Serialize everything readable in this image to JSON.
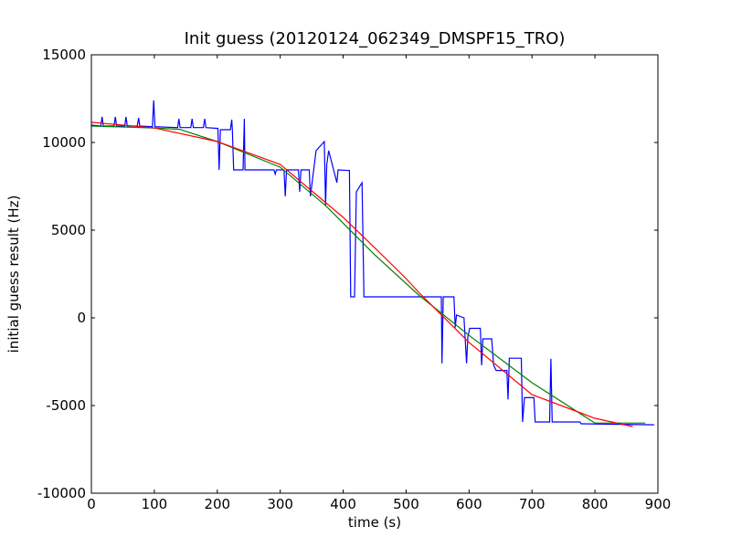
{
  "chart_data": {
    "type": "line",
    "title": "Init guess (20120124_062349_DMSPF15_TRO)",
    "xlabel": "time (s)",
    "ylabel": "initial guess result (Hz)",
    "xlim": [
      0,
      900
    ],
    "ylim": [
      -10000,
      15000
    ],
    "xticks": [
      0,
      100,
      200,
      300,
      400,
      500,
      600,
      700,
      800,
      900
    ],
    "yticks": [
      -10000,
      -5000,
      0,
      5000,
      10000,
      15000
    ],
    "series": [
      {
        "color": "#0000ff",
        "x": [
          0,
          15,
          17,
          19,
          36,
          38,
          40,
          53,
          55,
          57,
          73,
          75,
          77,
          97,
          99,
          101,
          137,
          139,
          141,
          158,
          160,
          162,
          178,
          180,
          182,
          201,
          203,
          205,
          221,
          223,
          224,
          226,
          228,
          241,
          243,
          244,
          246,
          248,
          290,
          292,
          294,
          306,
          308,
          310,
          329,
          331,
          333,
          346,
          348,
          357,
          370,
          372,
          374,
          375,
          377,
          390,
          392,
          410,
          412,
          414,
          418,
          421,
          430,
          433,
          436,
          556,
          557,
          559,
          576,
          578,
          580,
          592,
          596,
          598,
          601,
          618,
          620,
          622,
          636,
          639,
          643,
          660,
          662,
          664,
          683,
          685,
          688,
          703,
          705,
          709,
          728,
          730,
          732,
          776,
          778,
          780,
          894
        ],
        "values": [
          10990,
          10940,
          11460,
          10940,
          10940,
          11460,
          10940,
          10940,
          11460,
          10940,
          10940,
          11400,
          10940,
          10900,
          12400,
          10900,
          10850,
          11350,
          10850,
          10850,
          11350,
          10850,
          10850,
          11350,
          10850,
          10800,
          8440,
          10730,
          10730,
          11300,
          10730,
          8440,
          8440,
          8440,
          11350,
          8440,
          8440,
          8440,
          8440,
          8200,
          8440,
          8440,
          6930,
          8440,
          8440,
          7190,
          8440,
          8440,
          6930,
          9530,
          10050,
          6400,
          8750,
          9000,
          9530,
          7710,
          8440,
          8400,
          1200,
          1200,
          1200,
          7190,
          7710,
          1200,
          1200,
          1200,
          -2600,
          1200,
          1200,
          -550,
          160,
          0,
          -2600,
          -1100,
          -600,
          -600,
          -2700,
          -1200,
          -1200,
          -2700,
          -3000,
          -3000,
          -4650,
          -2300,
          -2300,
          -5940,
          -4550,
          -4550,
          -5940,
          -5940,
          -5940,
          -2340,
          -5940,
          -5940,
          -6040,
          -6040,
          -6100
        ]
      },
      {
        "color": "#008000",
        "x": [
          0,
          100,
          140,
          200,
          300,
          372,
          450,
          520,
          600,
          700,
          800,
          880
        ],
        "values": [
          10940,
          10830,
          10750,
          10050,
          8590,
          6400,
          3600,
          1300,
          -1000,
          -3700,
          -6000,
          -6000
        ]
      },
      {
        "color": "#ff0000",
        "x": [
          0,
          100,
          200,
          300,
          400,
          450,
          500,
          520,
          600,
          700,
          800,
          860
        ],
        "values": [
          11150,
          10830,
          10050,
          8750,
          5730,
          4000,
          2240,
          1460,
          -1400,
          -4380,
          -5730,
          -6200
        ]
      }
    ]
  }
}
